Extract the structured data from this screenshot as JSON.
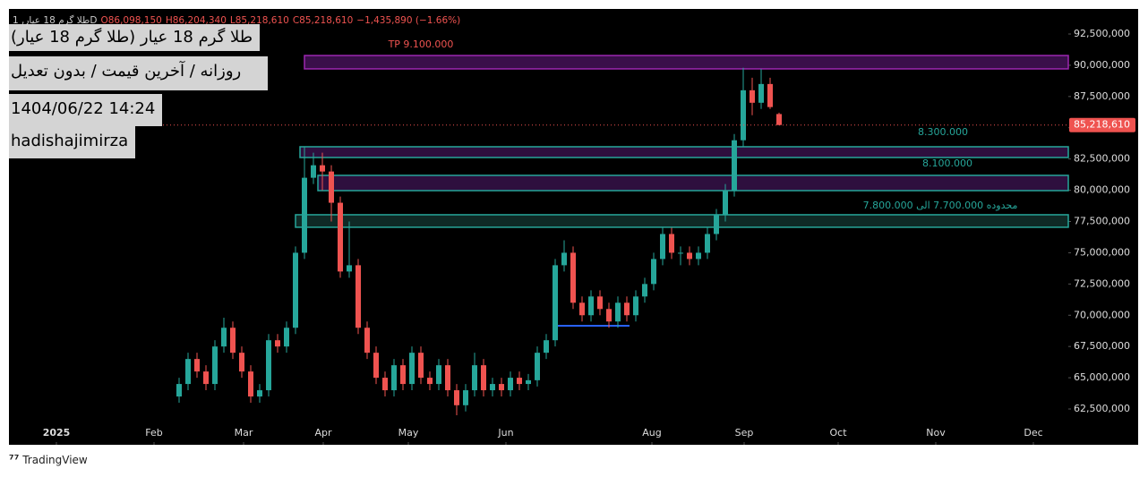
{
  "header": {
    "symbol": "طلا گرم 18 عیار, 1D",
    "open": "O86,098,150",
    "high": "H86,204,340",
    "low": "L85,218,610",
    "close": "C85,218,610",
    "change": "−1,435,890 (−1.66%)"
  },
  "overlay": [
    "طلا گرم 18 عیار (طلا گرم 18 عیار)",
    "روزانه / آخرین قیمت / بدون تعدیل",
    "1404/06/22 14:24",
    "hadishajimirza"
  ],
  "footer": "TradingView",
  "chart_data": {
    "type": "candlestick",
    "up_color": "#26a69a",
    "down_color": "#ef5350",
    "ohlc": [
      [
        63500000,
        65000000,
        63000000,
        64500000
      ],
      [
        64500000,
        67000000,
        64000000,
        66500000
      ],
      [
        66500000,
        67000000,
        65000000,
        65500000
      ],
      [
        65500000,
        66000000,
        64000000,
        64500000
      ],
      [
        64500000,
        68000000,
        64000000,
        67500000
      ],
      [
        67500000,
        69800000,
        67000000,
        69000000
      ],
      [
        69000000,
        69500000,
        66500000,
        67000000
      ],
      [
        67000000,
        67500000,
        65000000,
        65500000
      ],
      [
        65500000,
        66000000,
        63000000,
        63500000
      ],
      [
        63500000,
        64500000,
        63000000,
        64000000
      ],
      [
        64000000,
        68500000,
        63500000,
        68000000
      ],
      [
        68000000,
        68500000,
        67000000,
        67500000
      ],
      [
        67500000,
        69500000,
        67000000,
        69000000
      ],
      [
        69000000,
        75500000,
        68500000,
        75000000
      ],
      [
        75000000,
        83500000,
        74500000,
        81000000
      ],
      [
        81000000,
        83000000,
        80500000,
        82000000
      ],
      [
        82000000,
        83000000,
        80000000,
        81500000
      ],
      [
        81500000,
        82000000,
        77500000,
        79000000
      ],
      [
        79000000,
        79500000,
        73000000,
        73500000
      ],
      [
        73500000,
        77500000,
        73000000,
        74000000
      ],
      [
        74000000,
        74500000,
        68500000,
        69000000
      ],
      [
        69000000,
        69500000,
        66500000,
        67000000
      ],
      [
        67000000,
        67500000,
        64500000,
        65000000
      ],
      [
        65000000,
        65500000,
        63500000,
        64000000
      ],
      [
        64000000,
        66500000,
        63500000,
        66000000
      ],
      [
        66000000,
        66500000,
        64000000,
        64500000
      ],
      [
        64500000,
        67500000,
        64000000,
        67000000
      ],
      [
        67000000,
        67500000,
        64500000,
        65000000
      ],
      [
        65000000,
        65500000,
        64000000,
        64500000
      ],
      [
        64500000,
        66500000,
        64000000,
        66000000
      ],
      [
        66000000,
        66500000,
        63500000,
        64000000
      ],
      [
        64000000,
        64500000,
        62000000,
        62800000
      ],
      [
        62800000,
        64500000,
        62300000,
        64000000
      ],
      [
        64000000,
        67000000,
        63500000,
        66000000
      ],
      [
        66000000,
        66500000,
        63500000,
        64000000
      ],
      [
        64000000,
        65000000,
        63500000,
        64500000
      ],
      [
        64500000,
        65000000,
        63500000,
        64000000
      ],
      [
        64000000,
        65500000,
        63500000,
        65000000
      ],
      [
        65000000,
        65500000,
        64000000,
        64500000
      ],
      [
        64500000,
        65300000,
        64000000,
        64800000
      ],
      [
        64800000,
        67500000,
        64300000,
        67000000
      ],
      [
        67000000,
        68500000,
        66500000,
        68000000
      ],
      [
        68000000,
        74500000,
        67500000,
        74000000
      ],
      [
        74000000,
        76000000,
        73500000,
        75000000
      ],
      [
        75000000,
        75500000,
        70500000,
        71000000
      ],
      [
        71000000,
        71500000,
        69500000,
        70000000
      ],
      [
        70000000,
        72000000,
        69500000,
        71500000
      ],
      [
        71500000,
        72000000,
        70000000,
        70500000
      ],
      [
        70500000,
        71000000,
        69000000,
        69500000
      ],
      [
        69500000,
        71500000,
        69000000,
        71000000
      ],
      [
        71000000,
        71500000,
        69500000,
        70000000
      ],
      [
        70000000,
        72000000,
        69500000,
        71500000
      ],
      [
        71500000,
        73000000,
        71000000,
        72500000
      ],
      [
        72500000,
        75000000,
        72000000,
        74500000
      ],
      [
        74500000,
        77000000,
        74000000,
        76500000
      ],
      [
        76500000,
        77000000,
        74500000,
        75000000
      ],
      [
        75000000,
        75500000,
        74000000,
        75000000
      ],
      [
        75000000,
        75500000,
        74000000,
        74500000
      ],
      [
        74500000,
        75500000,
        74000000,
        75000000
      ],
      [
        75000000,
        77000000,
        74500000,
        76500000
      ],
      [
        76500000,
        78500000,
        76000000,
        78000000
      ],
      [
        78000000,
        80500000,
        77500000,
        80000000
      ],
      [
        80000000,
        84500000,
        79500000,
        84000000
      ],
      [
        84000000,
        89800000,
        83500000,
        88000000
      ],
      [
        88000000,
        89000000,
        86000000,
        87000000
      ],
      [
        87000000,
        89700000,
        86500000,
        88500000
      ],
      [
        88500000,
        89000000,
        86500000,
        86654500
      ],
      [
        86098150,
        86204340,
        85218610,
        85218610
      ]
    ],
    "last_label": "85,218,610",
    "ylim": [
      59636000,
      94505000
    ],
    "yticks": [
      {
        "value": 62500000,
        "label": "62,500,000"
      },
      {
        "value": 65000000,
        "label": "65,000,000"
      },
      {
        "value": 67500000,
        "label": "67,500,000"
      },
      {
        "value": 70000000,
        "label": "70,000,000"
      },
      {
        "value": 72500000,
        "label": "72,500,000"
      },
      {
        "value": 75000000,
        "label": "75,000,000"
      },
      {
        "value": 77500000,
        "label": "77,500,000"
      },
      {
        "value": 80000000,
        "label": "80,000,000"
      },
      {
        "value": 82500000,
        "label": "82,500,000"
      },
      {
        "value": 85000000,
        "label": "85,000,000"
      },
      {
        "value": 87500000,
        "label": "87,500,000"
      },
      {
        "value": 90000000,
        "label": "90,000,000"
      },
      {
        "value": 92500000,
        "label": "92,500,000"
      }
    ],
    "xlim": [
      -19,
      99.3
    ],
    "xticks": [
      {
        "value": -13.7,
        "label": "2025"
      },
      {
        "value": -2.8,
        "label": "Feb"
      },
      {
        "value": 7.2,
        "label": "Mar"
      },
      {
        "value": 16.1,
        "label": "Apr"
      },
      {
        "value": 25.6,
        "label": "May"
      },
      {
        "value": 36.5,
        "label": "Jun"
      },
      {
        "value": 52.8,
        "label": "Aug"
      },
      {
        "value": 63.1,
        "label": "Sep"
      },
      {
        "value": 73.6,
        "label": "Oct"
      },
      {
        "value": 84.5,
        "label": "Nov"
      },
      {
        "value": 95.4,
        "label": "Dec"
      }
    ],
    "zones": [
      {
        "label": "TP 9.100.000",
        "ylim": [
          89710000,
          90780000
        ],
        "color": "#9c27b0",
        "fill": "#3a0f4a",
        "label_color": "#ef5350"
      },
      {
        "label": "8.300.000",
        "ylim": [
          82620000,
          83480000
        ],
        "color": "#26a69a",
        "fill": "#2e0f3e",
        "label_color": "#26a69a"
      },
      {
        "label": "8.100.000",
        "ylim": [
          79970000,
          81190000
        ],
        "color": "#26a69a",
        "fill": "#2e0f3e",
        "label_color": "#26a69a"
      },
      {
        "label": "محدوده 7.700.000 الی 7.800.000",
        "ylim": [
          77040000,
          78040000
        ],
        "color": "#26a69a",
        "fill": "#0f2a26",
        "label_color": "#26a69a"
      }
    ],
    "support_line": {
      "value": 69160000,
      "color": "#2962ff"
    }
  }
}
